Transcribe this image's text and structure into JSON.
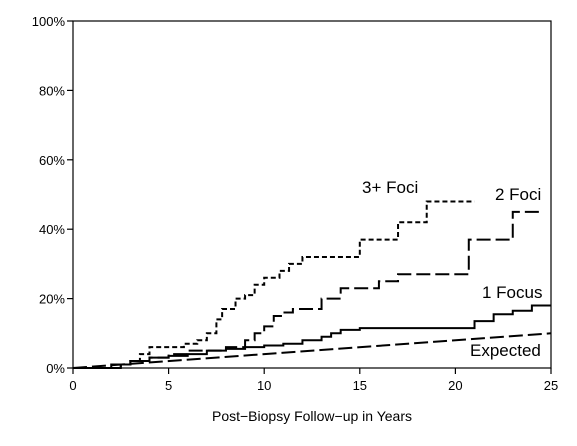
{
  "chart_data": {
    "type": "line",
    "title": "",
    "xlabel": "Post−Biopsy Follow−up in Years",
    "ylabel": "",
    "xlim": [
      0,
      25
    ],
    "ylim": [
      0,
      100
    ],
    "x_ticks": [
      0,
      5,
      10,
      15,
      20,
      25
    ],
    "x_tick_labels": [
      "0",
      "5",
      "10",
      "15",
      "20",
      "25"
    ],
    "y_ticks": [
      0,
      20,
      40,
      60,
      80,
      100
    ],
    "y_tick_labels": [
      "0%",
      "20%",
      "40%",
      "60%",
      "80%",
      "100%"
    ],
    "grid": false,
    "legend": "none (series labeled directly on the plot)",
    "series": [
      {
        "name": "3+ Foci",
        "style": "short-dash",
        "step": true,
        "x": [
          0,
          2.5,
          3,
          3.5,
          4,
          5.8,
          6.5,
          7,
          7.5,
          7.8,
          8.5,
          9,
          9.5,
          10,
          10.8,
          11.3,
          12,
          14.5,
          15,
          16.5,
          17,
          17.5,
          18.5,
          21
        ],
        "y": [
          0,
          1,
          2,
          4,
          6,
          7,
          8,
          10,
          14,
          17,
          20,
          21,
          24,
          26,
          28,
          30,
          32,
          32,
          37,
          37,
          42,
          42,
          48,
          48
        ]
      },
      {
        "name": "2 Foci",
        "style": "long-dash",
        "step": true,
        "x": [
          0,
          2.5,
          3,
          4,
          5,
          5.5,
          6,
          7,
          8,
          9,
          9.5,
          10,
          10.5,
          11,
          11.5,
          12,
          13,
          14,
          15,
          16,
          17,
          18,
          20,
          20.7,
          22,
          23,
          23.5,
          24.5
        ],
        "y": [
          0,
          1,
          2,
          3,
          4,
          4,
          5,
          5,
          6,
          8,
          10,
          12,
          15,
          16,
          17,
          17,
          20,
          23,
          23,
          25,
          27,
          27,
          27,
          37,
          37,
          45,
          45,
          45
        ]
      },
      {
        "name": "1 Focus",
        "style": "solid",
        "step": true,
        "x": [
          0,
          2,
          3,
          4,
          5,
          6,
          7,
          8,
          9,
          10,
          11,
          12,
          13,
          13.5,
          14,
          15,
          16,
          20,
          21,
          22,
          23,
          24,
          25
        ],
        "y": [
          0,
          1,
          2,
          3,
          3.5,
          4,
          5,
          5.5,
          6,
          6.5,
          7,
          8,
          9,
          10,
          11,
          11.5,
          11.5,
          11.5,
          13.5,
          15.5,
          16.5,
          18,
          18
        ]
      },
      {
        "name": "Expected",
        "style": "long-dash",
        "step": false,
        "x": [
          0,
          25
        ],
        "y": [
          0,
          10
        ]
      }
    ]
  }
}
